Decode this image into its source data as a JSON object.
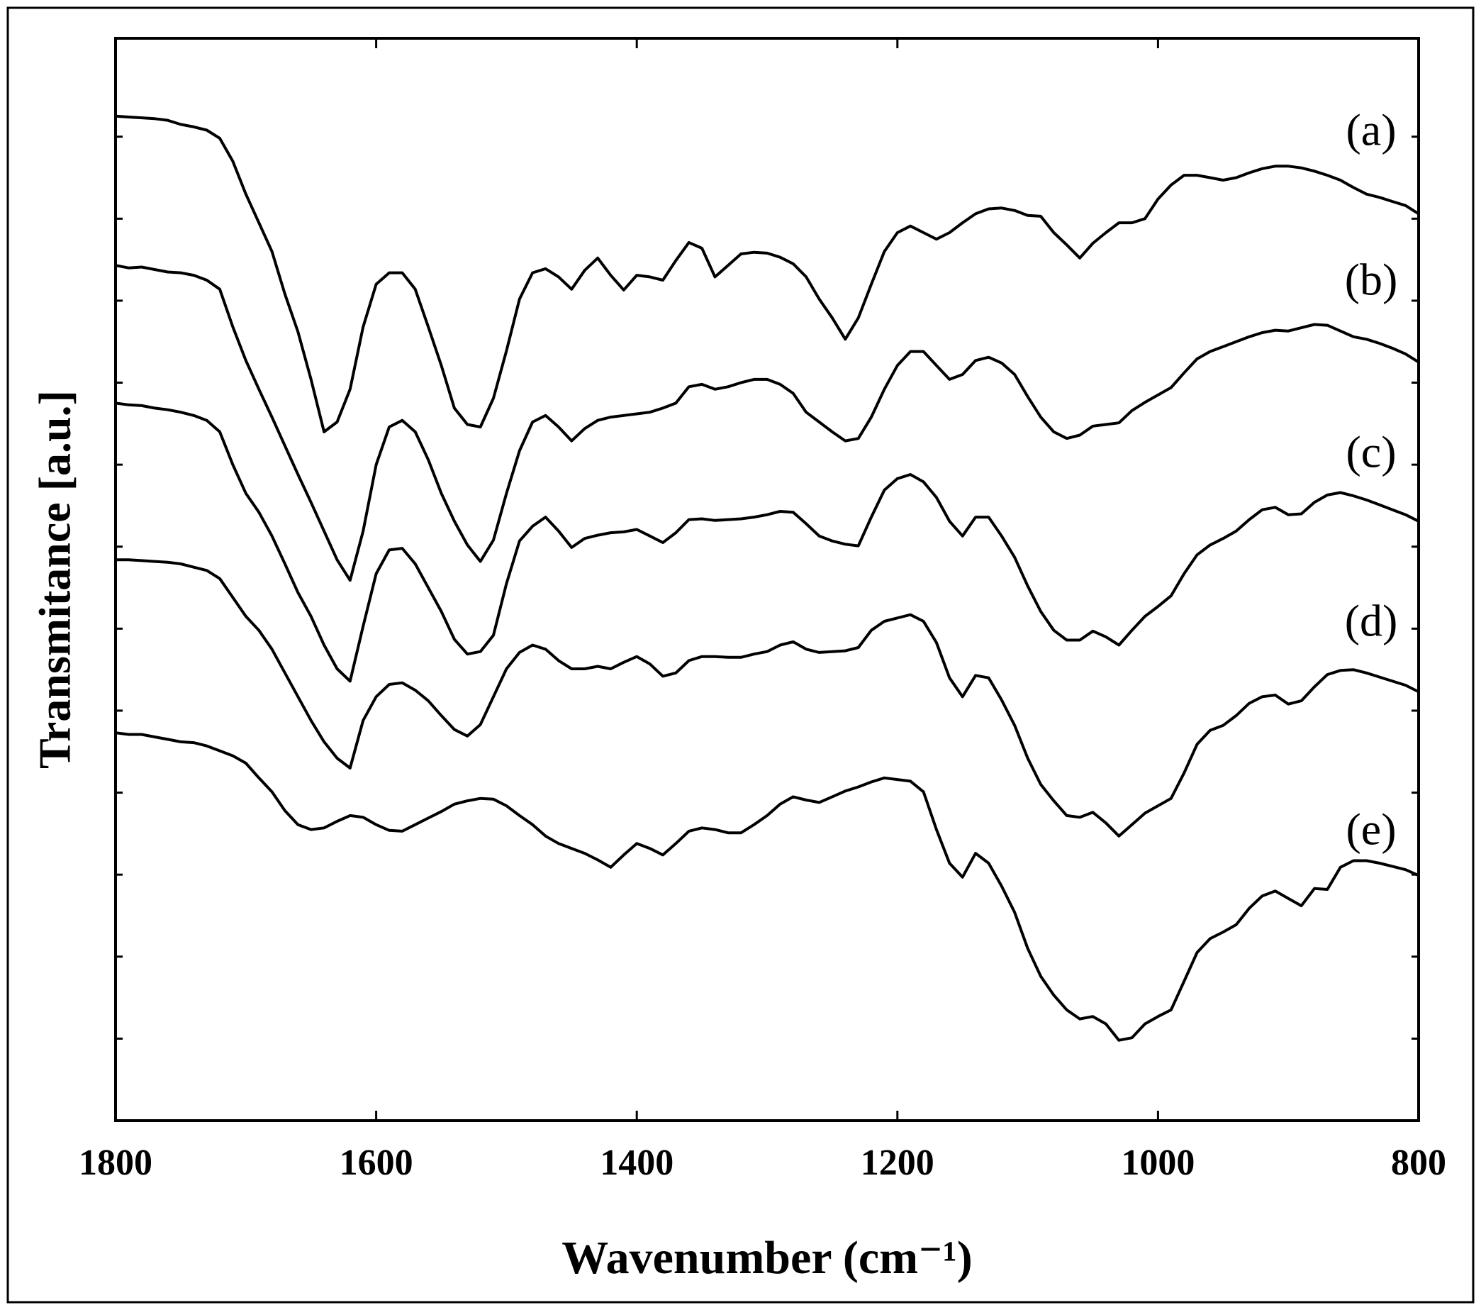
{
  "chart_data": {
    "type": "line",
    "x_label": "Wavenumber (cm⁻¹)",
    "y_label": "Transmitance [a.u.]",
    "x": [
      1800,
      1790,
      1780,
      1770,
      1760,
      1750,
      1740,
      1730,
      1720,
      1710,
      1700,
      1690,
      1680,
      1670,
      1660,
      1650,
      1640,
      1630,
      1620,
      1610,
      1600,
      1590,
      1580,
      1570,
      1560,
      1550,
      1540,
      1530,
      1520,
      1510,
      1500,
      1490,
      1480,
      1470,
      1460,
      1450,
      1440,
      1430,
      1420,
      1410,
      1400,
      1390,
      1380,
      1370,
      1360,
      1350,
      1340,
      1330,
      1320,
      1310,
      1300,
      1290,
      1280,
      1270,
      1260,
      1250,
      1240,
      1230,
      1220,
      1210,
      1200,
      1190,
      1180,
      1170,
      1160,
      1150,
      1140,
      1130,
      1120,
      1110,
      1100,
      1090,
      1080,
      1070,
      1060,
      1050,
      1040,
      1030,
      1020,
      1010,
      1000,
      990,
      980,
      970,
      960,
      950,
      940,
      930,
      920,
      910,
      900,
      890,
      880,
      870,
      860,
      850,
      840,
      830,
      820,
      810,
      800
    ],
    "xlim": [
      1800,
      800
    ],
    "xticks": [
      1800,
      1600,
      1400,
      1200,
      1000,
      800
    ],
    "ylim": [
      0,
      13.2
    ],
    "yticks": [
      1,
      2,
      3,
      4,
      5,
      6,
      7,
      8,
      9,
      10,
      11,
      12
    ],
    "series": [
      {
        "name": "(a)",
        "color": "#000000",
        "values": [
          12.25,
          12.24,
          12.23,
          12.22,
          12.2,
          12.15,
          12.12,
          12.08,
          11.98,
          11.7,
          11.3,
          10.95,
          10.6,
          10.08,
          9.62,
          9.04,
          8.4,
          8.52,
          8.92,
          9.68,
          10.2,
          10.34,
          10.34,
          10.14,
          9.68,
          9.21,
          8.69,
          8.49,
          8.46,
          8.81,
          9.39,
          10.02,
          10.34,
          10.39,
          10.29,
          10.14,
          10.37,
          10.52,
          10.31,
          10.13,
          10.31,
          10.29,
          10.25,
          10.49,
          10.71,
          10.64,
          10.29,
          10.43,
          10.57,
          10.59,
          10.58,
          10.53,
          10.45,
          10.29,
          10.02,
          9.79,
          9.53,
          9.79,
          10.2,
          10.6,
          10.83,
          10.91,
          10.83,
          10.75,
          10.83,
          10.95,
          11.06,
          11.12,
          11.13,
          11.1,
          11.04,
          11.03,
          10.83,
          10.68,
          10.52,
          10.7,
          10.83,
          10.95,
          10.95,
          11.0,
          11.24,
          11.41,
          11.53,
          11.53,
          11.5,
          11.47,
          11.5,
          11.56,
          11.61,
          11.64,
          11.64,
          11.62,
          11.58,
          11.53,
          11.47,
          11.38,
          11.3,
          11.26,
          11.21,
          11.16,
          11.06
        ]
      },
      {
        "name": "(b)",
        "color": "#000000",
        "values": [
          10.43,
          10.4,
          10.41,
          10.38,
          10.35,
          10.34,
          10.31,
          10.25,
          10.14,
          9.68,
          9.27,
          8.92,
          8.58,
          8.23,
          7.88,
          7.54,
          7.19,
          6.84,
          6.59,
          7.19,
          8.0,
          8.46,
          8.54,
          8.4,
          8.06,
          7.65,
          7.31,
          7.02,
          6.82,
          7.08,
          7.65,
          8.17,
          8.52,
          8.6,
          8.46,
          8.29,
          8.44,
          8.54,
          8.58,
          8.6,
          8.62,
          8.64,
          8.69,
          8.75,
          8.95,
          8.98,
          8.92,
          8.95,
          9.0,
          9.04,
          9.04,
          8.98,
          8.87,
          8.64,
          8.52,
          8.4,
          8.29,
          8.32,
          8.58,
          8.92,
          9.21,
          9.38,
          9.38,
          9.21,
          9.04,
          9.1,
          9.27,
          9.31,
          9.24,
          9.1,
          8.83,
          8.58,
          8.4,
          8.32,
          8.36,
          8.47,
          8.49,
          8.51,
          8.66,
          8.76,
          8.85,
          8.94,
          9.12,
          9.29,
          9.38,
          9.44,
          9.5,
          9.56,
          9.61,
          9.64,
          9.63,
          9.67,
          9.71,
          9.7,
          9.63,
          9.56,
          9.53,
          9.48,
          9.42,
          9.35,
          9.25
        ]
      },
      {
        "name": "(c)",
        "color": "#000000",
        "values": [
          8.75,
          8.73,
          8.72,
          8.69,
          8.67,
          8.64,
          8.6,
          8.54,
          8.4,
          8.0,
          7.65,
          7.42,
          7.13,
          6.79,
          6.44,
          6.15,
          5.8,
          5.51,
          5.36,
          6.03,
          6.67,
          6.96,
          6.98,
          6.79,
          6.5,
          6.21,
          5.87,
          5.69,
          5.72,
          5.92,
          6.55,
          7.07,
          7.25,
          7.36,
          7.19,
          6.99,
          7.1,
          7.14,
          7.17,
          7.18,
          7.21,
          7.13,
          7.05,
          7.17,
          7.33,
          7.34,
          7.32,
          7.33,
          7.34,
          7.36,
          7.39,
          7.43,
          7.42,
          7.28,
          7.13,
          7.07,
          7.03,
          7.01,
          7.36,
          7.69,
          7.83,
          7.88,
          7.79,
          7.6,
          7.31,
          7.13,
          7.36,
          7.36,
          7.13,
          6.87,
          6.52,
          6.21,
          5.98,
          5.86,
          5.86,
          5.97,
          5.9,
          5.8,
          5.98,
          6.15,
          6.27,
          6.4,
          6.67,
          6.9,
          7.02,
          7.1,
          7.19,
          7.33,
          7.45,
          7.48,
          7.39,
          7.4,
          7.54,
          7.63,
          7.66,
          7.62,
          7.57,
          7.51,
          7.45,
          7.39,
          7.31
        ]
      },
      {
        "name": "(d)",
        "color": "#000000",
        "values": [
          6.84,
          6.84,
          6.83,
          6.82,
          6.81,
          6.79,
          6.75,
          6.71,
          6.61,
          6.38,
          6.15,
          5.98,
          5.75,
          5.46,
          5.17,
          4.88,
          4.62,
          4.42,
          4.3,
          4.88,
          5.17,
          5.32,
          5.34,
          5.25,
          5.12,
          4.94,
          4.77,
          4.69,
          4.83,
          5.17,
          5.51,
          5.71,
          5.8,
          5.75,
          5.61,
          5.51,
          5.51,
          5.54,
          5.51,
          5.59,
          5.66,
          5.57,
          5.42,
          5.46,
          5.61,
          5.66,
          5.66,
          5.65,
          5.65,
          5.69,
          5.72,
          5.8,
          5.84,
          5.75,
          5.71,
          5.72,
          5.73,
          5.77,
          5.98,
          6.09,
          6.13,
          6.17,
          6.09,
          5.83,
          5.4,
          5.17,
          5.43,
          5.4,
          5.13,
          4.82,
          4.42,
          4.1,
          3.9,
          3.72,
          3.7,
          3.76,
          3.63,
          3.47,
          3.61,
          3.75,
          3.84,
          3.93,
          4.24,
          4.59,
          4.76,
          4.82,
          4.94,
          5.09,
          5.17,
          5.19,
          5.08,
          5.12,
          5.29,
          5.44,
          5.49,
          5.5,
          5.46,
          5.41,
          5.36,
          5.31,
          5.23
        ]
      },
      {
        "name": "(e)",
        "color": "#000000",
        "values": [
          4.73,
          4.71,
          4.71,
          4.68,
          4.65,
          4.62,
          4.61,
          4.57,
          4.51,
          4.45,
          4.36,
          4.18,
          4.01,
          3.78,
          3.61,
          3.55,
          3.57,
          3.65,
          3.72,
          3.7,
          3.61,
          3.54,
          3.53,
          3.61,
          3.69,
          3.77,
          3.86,
          3.9,
          3.93,
          3.92,
          3.84,
          3.72,
          3.61,
          3.47,
          3.38,
          3.32,
          3.26,
          3.18,
          3.09,
          3.24,
          3.38,
          3.32,
          3.24,
          3.38,
          3.53,
          3.57,
          3.55,
          3.51,
          3.51,
          3.61,
          3.72,
          3.86,
          3.95,
          3.91,
          3.88,
          3.95,
          4.02,
          4.07,
          4.13,
          4.18,
          4.16,
          4.14,
          4.01,
          3.55,
          3.14,
          2.97,
          3.26,
          3.14,
          2.86,
          2.54,
          2.1,
          1.76,
          1.53,
          1.35,
          1.24,
          1.27,
          1.18,
          0.98,
          1.01,
          1.18,
          1.27,
          1.35,
          1.7,
          2.05,
          2.22,
          2.3,
          2.39,
          2.59,
          2.74,
          2.8,
          2.71,
          2.62,
          2.83,
          2.82,
          3.09,
          3.17,
          3.17,
          3.14,
          3.1,
          3.06,
          2.99
        ]
      }
    ]
  }
}
